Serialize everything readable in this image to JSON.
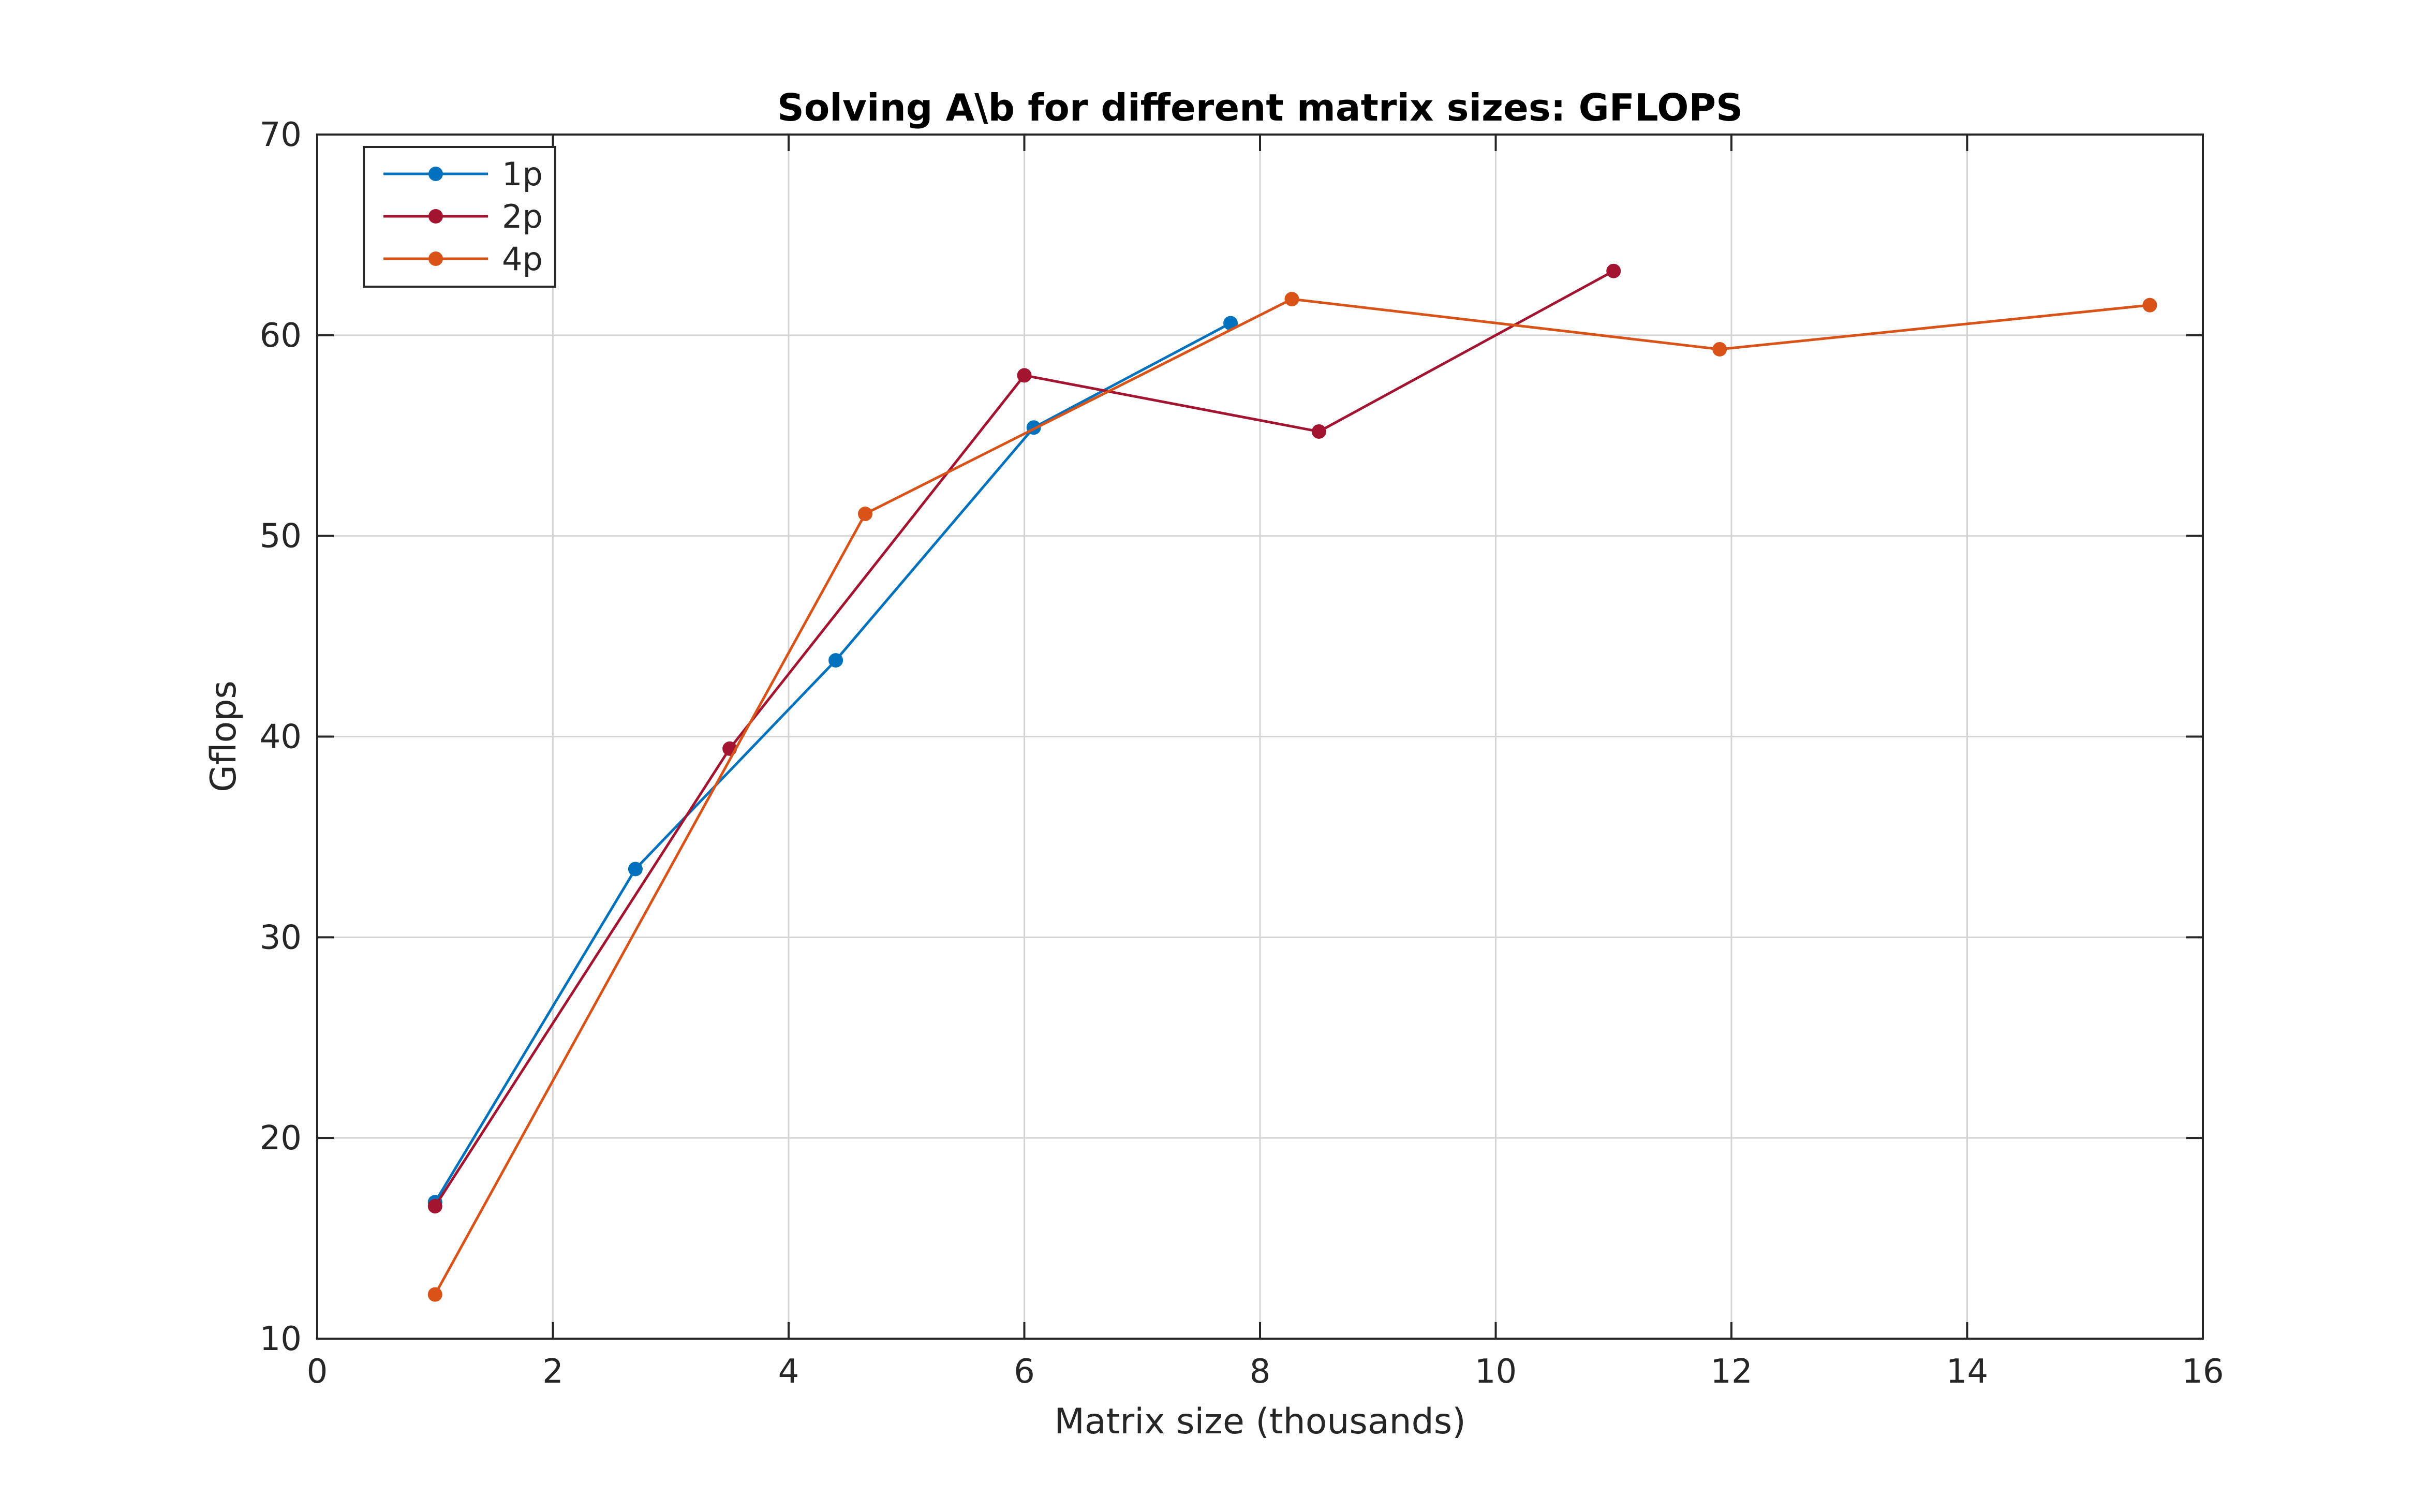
{
  "chart_data": {
    "type": "line",
    "title": "Solving A\\b for different matrix sizes: GFLOPS",
    "xlabel": "Matrix size (thousands)",
    "ylabel": "Gflops",
    "xlim": [
      0,
      16
    ],
    "ylim": [
      10,
      70
    ],
    "xticks": [
      0,
      2,
      4,
      6,
      8,
      10,
      12,
      14,
      16
    ],
    "yticks": [
      10,
      20,
      30,
      40,
      50,
      60,
      70
    ],
    "grid": true,
    "legend_position": "top-left",
    "series": [
      {
        "name": "1p",
        "color": "#0072BD",
        "marker": "circle",
        "points": [
          [
            1.0,
            16.8
          ],
          [
            2.7,
            33.4
          ],
          [
            4.4,
            43.8
          ],
          [
            6.08,
            55.4
          ],
          [
            7.75,
            60.6
          ]
        ]
      },
      {
        "name": "2p",
        "color": "#A2142F",
        "marker": "circle",
        "points": [
          [
            1.0,
            16.6
          ],
          [
            3.5,
            39.4
          ],
          [
            6.0,
            58.0
          ],
          [
            8.5,
            55.2
          ],
          [
            11.0,
            63.2
          ]
        ]
      },
      {
        "name": "4p",
        "color": "#D95319",
        "marker": "circle",
        "points": [
          [
            1.0,
            12.2
          ],
          [
            4.65,
            51.1
          ],
          [
            8.27,
            61.8
          ],
          [
            11.9,
            59.3
          ],
          [
            15.55,
            61.5
          ]
        ]
      }
    ]
  }
}
